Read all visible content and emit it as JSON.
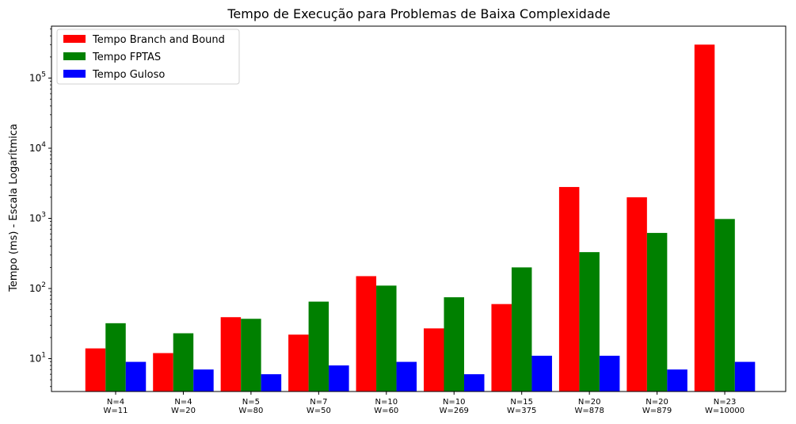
{
  "chart_data": {
    "type": "bar",
    "title": "Tempo de Execução para Problemas de Baixa Complexidade",
    "xlabel": "",
    "ylabel": "Tempo (ms) - Escala Logarítmica",
    "yscale": "log",
    "ylim": [
      3.4,
      550000
    ],
    "y_ticks": [
      {
        "value": 10,
        "base": "10",
        "exp": "1"
      },
      {
        "value": 100,
        "base": "10",
        "exp": "2"
      },
      {
        "value": 1000,
        "base": "10",
        "exp": "3"
      },
      {
        "value": 10000,
        "base": "10",
        "exp": "4"
      },
      {
        "value": 100000,
        "base": "10",
        "exp": "5"
      }
    ],
    "categories": [
      [
        "N=4",
        "W=11"
      ],
      [
        "N=4",
        "W=20"
      ],
      [
        "N=5",
        "W=80"
      ],
      [
        "N=7",
        "W=50"
      ],
      [
        "N=10",
        "W=60"
      ],
      [
        "N=10",
        "W=269"
      ],
      [
        "N=15",
        "W=375"
      ],
      [
        "N=20",
        "W=878"
      ],
      [
        "N=20",
        "W=879"
      ],
      [
        "N=23",
        "W=10000"
      ]
    ],
    "series": [
      {
        "name": "Tempo Branch and Bound",
        "color": "#ff0000",
        "values": [
          14,
          12,
          39,
          22,
          150,
          27,
          60,
          2800,
          2000,
          300000
        ]
      },
      {
        "name": "Tempo FPTAS",
        "color": "#008000",
        "values": [
          32,
          23,
          37,
          65,
          110,
          75,
          200,
          330,
          620,
          980
        ]
      },
      {
        "name": "Tempo Guloso",
        "color": "#0000ff",
        "values": [
          9,
          7,
          6,
          8,
          9,
          6,
          11,
          11,
          7,
          9
        ]
      }
    ],
    "legend_position": "top-left",
    "grid": false
  }
}
